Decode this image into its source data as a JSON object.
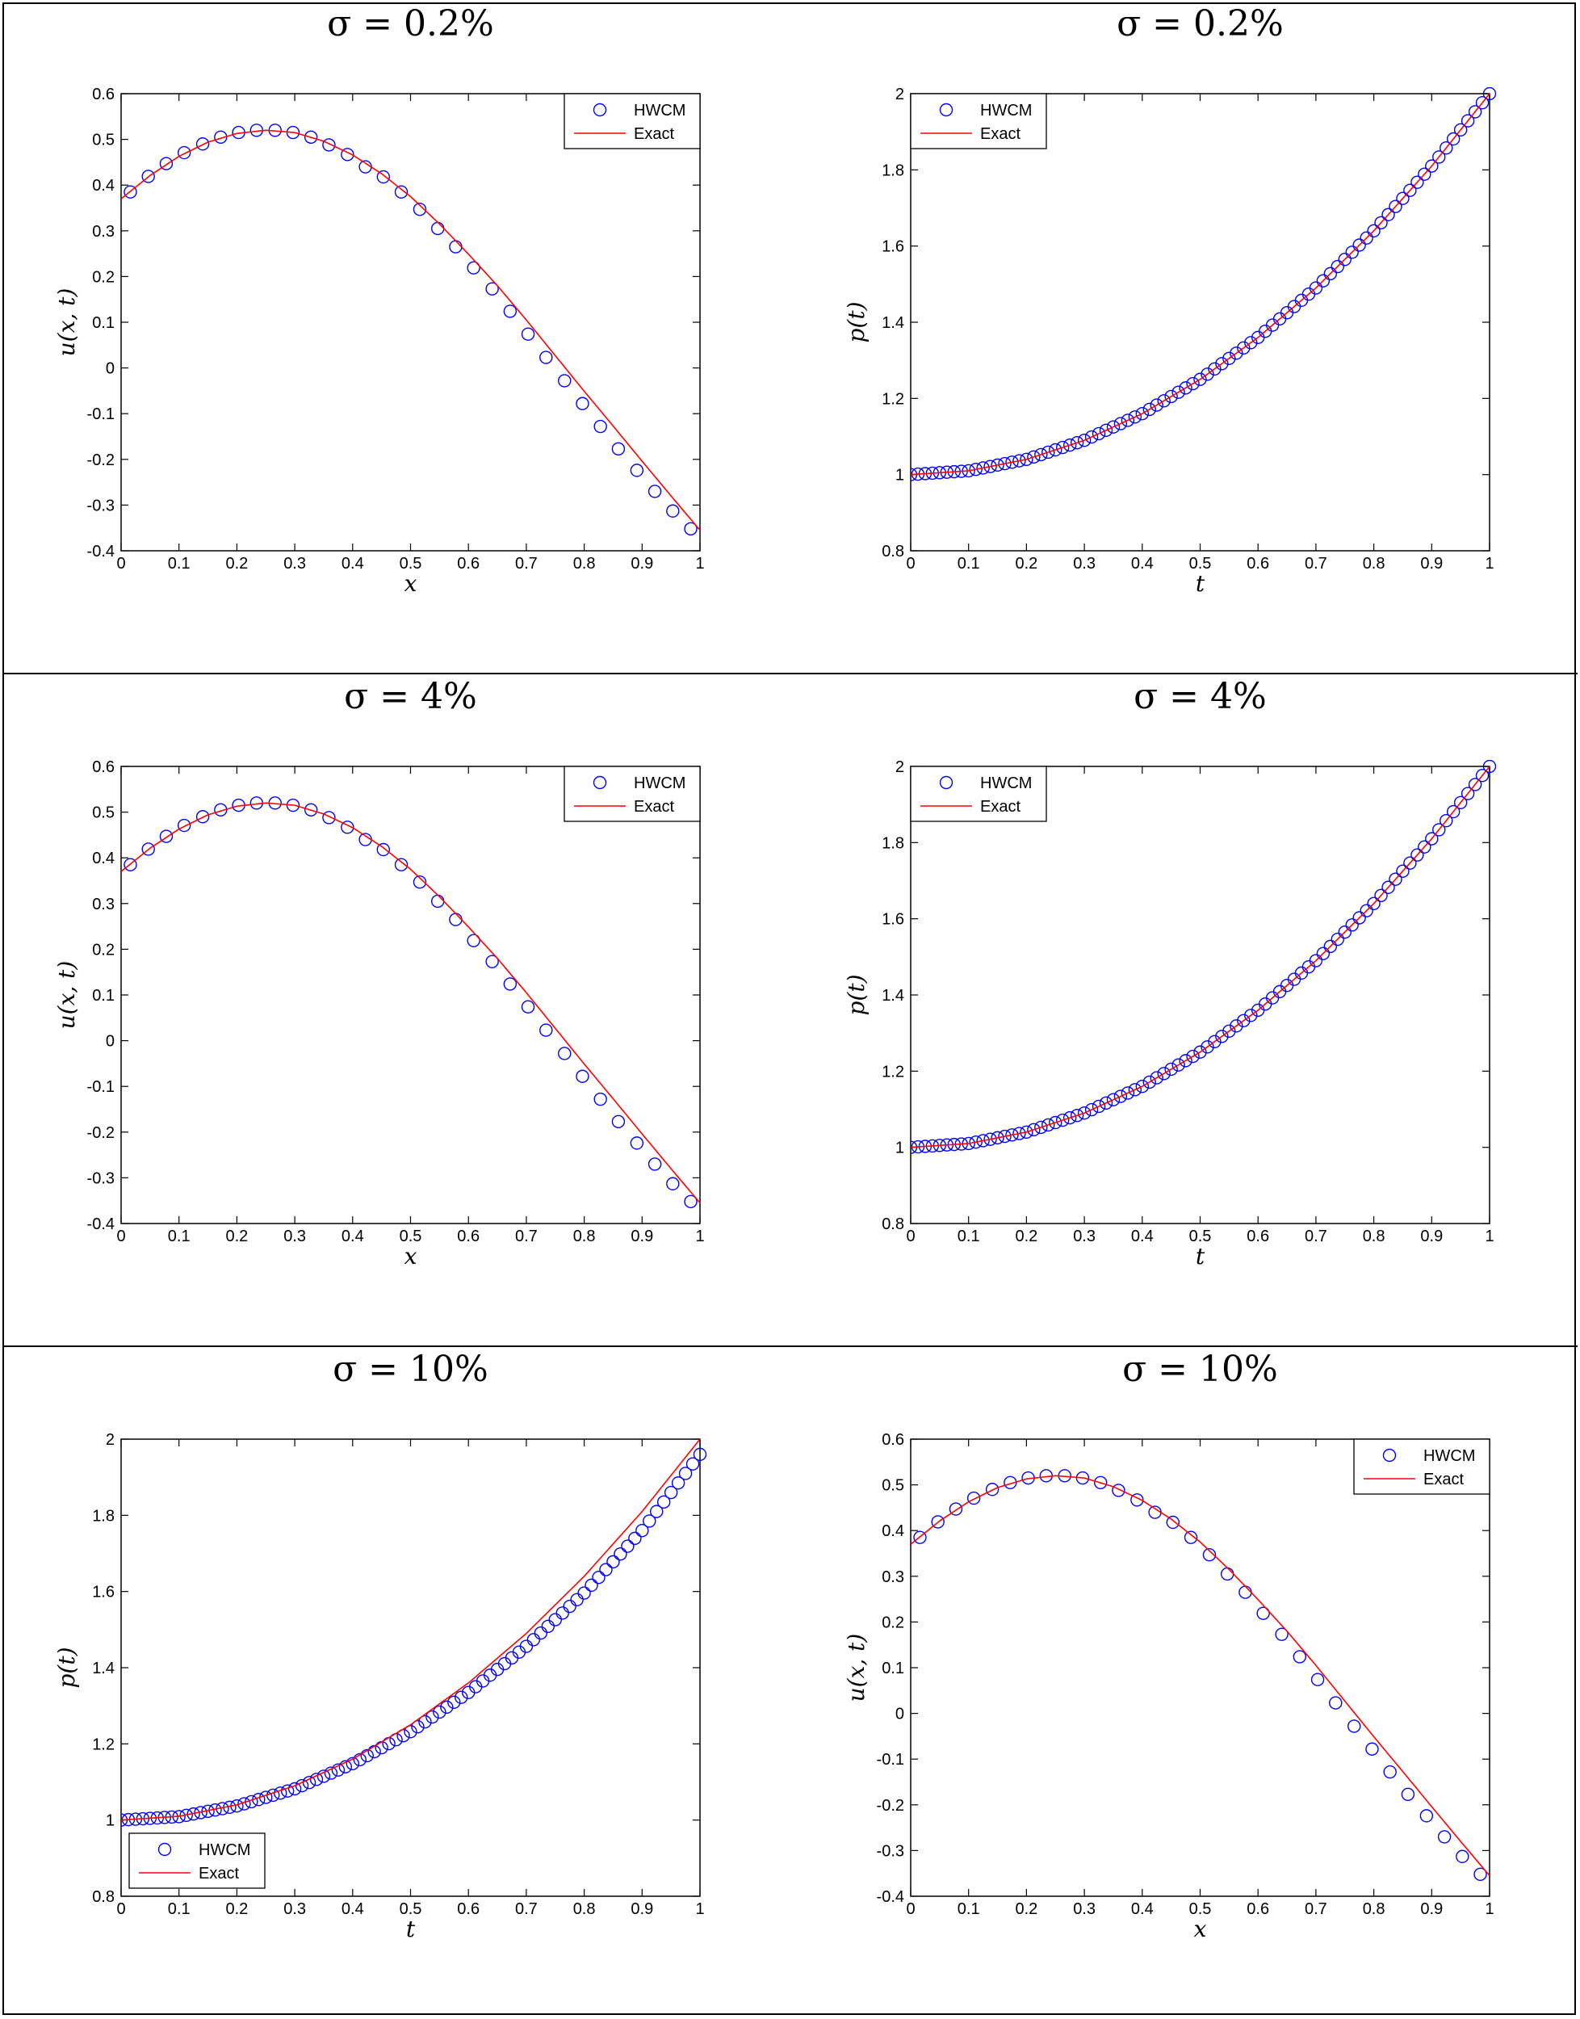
{
  "chart_data": [
    {
      "type": "line",
      "title": "σ = 0.2%",
      "xlabel": "x",
      "ylabel": "u(x, t)",
      "xlim": [
        0,
        1
      ],
      "ylim": [
        -0.4,
        0.6
      ],
      "xticks": [
        0,
        0.1,
        0.2,
        0.3,
        0.4,
        0.5,
        0.6,
        0.7,
        0.8,
        0.9,
        1
      ],
      "yticks": [
        -0.4,
        -0.3,
        -0.2,
        -0.1,
        0,
        0.1,
        0.2,
        0.3,
        0.4,
        0.5,
        0.6
      ],
      "legend_position": "top-right",
      "grid": false,
      "series": [
        {
          "name": "HWCM",
          "style": "markers",
          "color": "#0000ff",
          "x": [
            0.016,
            0.047,
            0.078,
            0.109,
            0.141,
            0.172,
            0.203,
            0.234,
            0.266,
            0.297,
            0.328,
            0.359,
            0.391,
            0.422,
            0.453,
            0.484,
            0.516,
            0.547,
            0.578,
            0.609,
            0.641,
            0.672,
            0.703,
            0.734,
            0.766,
            0.797,
            0.828,
            0.859,
            0.891,
            0.922,
            0.953,
            0.984
          ],
          "y": [
            0.385,
            0.419,
            0.447,
            0.471,
            0.49,
            0.505,
            0.515,
            0.52,
            0.52,
            0.515,
            0.505,
            0.488,
            0.467,
            0.44,
            0.418,
            0.385,
            0.347,
            0.305,
            0.265,
            0.219,
            0.173,
            0.124,
            0.074,
            0.023,
            -0.028,
            -0.078,
            -0.128,
            -0.177,
            -0.224,
            -0.27,
            -0.313,
            -0.352
          ]
        },
        {
          "name": "Exact",
          "style": "line",
          "color": "#ff0000",
          "x": [
            0,
            0.05,
            0.1,
            0.15,
            0.2,
            0.25,
            0.3,
            0.35,
            0.4,
            0.45,
            0.5,
            0.55,
            0.6,
            0.65,
            0.7,
            0.75,
            0.8,
            0.85,
            0.9,
            0.95,
            1
          ],
          "y": [
            0.37,
            0.421,
            0.463,
            0.494,
            0.513,
            0.52,
            0.515,
            0.496,
            0.466,
            0.425,
            0.375,
            0.315,
            0.249,
            0.18,
            0.105,
            0.027,
            -0.051,
            -0.127,
            -0.204,
            -0.28,
            -0.355
          ]
        }
      ]
    },
    {
      "type": "line",
      "title": "σ = 0.2%",
      "xlabel": "t",
      "ylabel": "p(t)",
      "xlim": [
        0,
        1
      ],
      "ylim": [
        0.8,
        2
      ],
      "xticks": [
        0,
        0.1,
        0.2,
        0.3,
        0.4,
        0.5,
        0.6,
        0.7,
        0.8,
        0.9,
        1
      ],
      "yticks": [
        0.8,
        1,
        1.2,
        1.4,
        1.6,
        1.8,
        2
      ],
      "legend_position": "top-left",
      "grid": false,
      "series": [
        {
          "name": "HWCM",
          "style": "markers",
          "color": "#0000ff",
          "note_points": 80,
          "x": [
            0,
            0.1,
            0.2,
            0.3,
            0.4,
            0.5,
            0.6,
            0.7,
            0.8,
            0.9,
            1
          ],
          "y": [
            1,
            1.01,
            1.04,
            1.09,
            1.16,
            1.25,
            1.36,
            1.49,
            1.64,
            1.81,
            2
          ]
        },
        {
          "name": "Exact",
          "style": "line",
          "color": "#ff0000",
          "x": [
            0,
            0.1,
            0.2,
            0.3,
            0.4,
            0.5,
            0.6,
            0.7,
            0.8,
            0.9,
            1
          ],
          "y": [
            1,
            1.01,
            1.04,
            1.09,
            1.16,
            1.25,
            1.36,
            1.49,
            1.64,
            1.81,
            2
          ]
        }
      ]
    },
    {
      "type": "line",
      "title": "σ = 4%",
      "xlabel": "x",
      "ylabel": "u(x, t)",
      "xlim": [
        0,
        1
      ],
      "ylim": [
        -0.4,
        0.6
      ],
      "xticks": [
        0,
        0.1,
        0.2,
        0.3,
        0.4,
        0.5,
        0.6,
        0.7,
        0.8,
        0.9,
        1
      ],
      "yticks": [
        -0.4,
        -0.3,
        -0.2,
        -0.1,
        0,
        0.1,
        0.2,
        0.3,
        0.4,
        0.5,
        0.6
      ],
      "legend_position": "top-right",
      "grid": false,
      "series": [
        {
          "name": "HWCM",
          "style": "markers",
          "color": "#0000ff",
          "x": [
            0.016,
            0.047,
            0.078,
            0.109,
            0.141,
            0.172,
            0.203,
            0.234,
            0.266,
            0.297,
            0.328,
            0.359,
            0.391,
            0.422,
            0.453,
            0.484,
            0.516,
            0.547,
            0.578,
            0.609,
            0.641,
            0.672,
            0.703,
            0.734,
            0.766,
            0.797,
            0.828,
            0.859,
            0.891,
            0.922,
            0.953,
            0.984
          ],
          "y": [
            0.385,
            0.419,
            0.447,
            0.471,
            0.49,
            0.505,
            0.515,
            0.52,
            0.52,
            0.515,
            0.505,
            0.488,
            0.467,
            0.44,
            0.418,
            0.385,
            0.347,
            0.305,
            0.265,
            0.219,
            0.173,
            0.124,
            0.074,
            0.023,
            -0.028,
            -0.078,
            -0.128,
            -0.177,
            -0.224,
            -0.27,
            -0.313,
            -0.352
          ]
        },
        {
          "name": "Exact",
          "style": "line",
          "color": "#ff0000",
          "x": [
            0,
            0.05,
            0.1,
            0.15,
            0.2,
            0.25,
            0.3,
            0.35,
            0.4,
            0.45,
            0.5,
            0.55,
            0.6,
            0.65,
            0.7,
            0.75,
            0.8,
            0.85,
            0.9,
            0.95,
            1
          ],
          "y": [
            0.37,
            0.421,
            0.463,
            0.494,
            0.513,
            0.52,
            0.515,
            0.496,
            0.466,
            0.425,
            0.375,
            0.315,
            0.249,
            0.18,
            0.105,
            0.027,
            -0.051,
            -0.127,
            -0.204,
            -0.28,
            -0.355
          ]
        }
      ]
    },
    {
      "type": "line",
      "title": "σ = 4%",
      "xlabel": "t",
      "ylabel": "p(t)",
      "xlim": [
        0,
        1
      ],
      "ylim": [
        0.8,
        2
      ],
      "xticks": [
        0,
        0.1,
        0.2,
        0.3,
        0.4,
        0.5,
        0.6,
        0.7,
        0.8,
        0.9,
        1
      ],
      "yticks": [
        0.8,
        1,
        1.2,
        1.4,
        1.6,
        1.8,
        2
      ],
      "legend_position": "top-left",
      "grid": false,
      "series": [
        {
          "name": "HWCM",
          "style": "markers",
          "color": "#0000ff",
          "x": [
            0,
            0.1,
            0.2,
            0.3,
            0.4,
            0.5,
            0.6,
            0.7,
            0.8,
            0.9,
            1
          ],
          "y": [
            1,
            1.01,
            1.04,
            1.09,
            1.16,
            1.25,
            1.36,
            1.49,
            1.64,
            1.81,
            2
          ]
        },
        {
          "name": "Exact",
          "style": "line",
          "color": "#ff0000",
          "x": [
            0,
            0.1,
            0.2,
            0.3,
            0.4,
            0.5,
            0.6,
            0.7,
            0.8,
            0.9,
            1
          ],
          "y": [
            1,
            1.01,
            1.04,
            1.09,
            1.16,
            1.25,
            1.36,
            1.49,
            1.64,
            1.81,
            2
          ]
        }
      ]
    },
    {
      "type": "line",
      "title": "σ = 10%",
      "xlabel": "t",
      "ylabel": "p(t)",
      "xlim": [
        0,
        1
      ],
      "ylim": [
        0.8,
        2
      ],
      "xticks": [
        0,
        0.1,
        0.2,
        0.3,
        0.4,
        0.5,
        0.6,
        0.7,
        0.8,
        0.9,
        1
      ],
      "yticks": [
        0.8,
        1,
        1.2,
        1.4,
        1.6,
        1.8,
        2
      ],
      "legend_position": "bottom-left",
      "grid": false,
      "series": [
        {
          "name": "HWCM",
          "style": "markers",
          "color": "#0000ff",
          "x": [
            0,
            0.1,
            0.2,
            0.3,
            0.4,
            0.5,
            0.6,
            0.7,
            0.8,
            0.9,
            1
          ],
          "y": [
            1,
            1.009,
            1.037,
            1.082,
            1.148,
            1.232,
            1.335,
            1.456,
            1.596,
            1.76,
            1.96
          ]
        },
        {
          "name": "Exact",
          "style": "line",
          "color": "#ff0000",
          "x": [
            0,
            0.1,
            0.2,
            0.3,
            0.4,
            0.5,
            0.6,
            0.7,
            0.8,
            0.9,
            1
          ],
          "y": [
            1,
            1.01,
            1.04,
            1.09,
            1.16,
            1.25,
            1.36,
            1.49,
            1.64,
            1.81,
            2
          ]
        }
      ]
    },
    {
      "type": "line",
      "title": "σ = 10%",
      "xlabel": "x",
      "ylabel": "u(x, t)",
      "xlim": [
        0,
        1
      ],
      "ylim": [
        -0.4,
        0.6
      ],
      "xticks": [
        0,
        0.1,
        0.2,
        0.3,
        0.4,
        0.5,
        0.6,
        0.7,
        0.8,
        0.9,
        1
      ],
      "yticks": [
        -0.4,
        -0.3,
        -0.2,
        -0.1,
        0,
        0.1,
        0.2,
        0.3,
        0.4,
        0.5,
        0.6
      ],
      "legend_position": "top-right",
      "grid": false,
      "series": [
        {
          "name": "HWCM",
          "style": "markers",
          "color": "#0000ff",
          "x": [
            0.016,
            0.047,
            0.078,
            0.109,
            0.141,
            0.172,
            0.203,
            0.234,
            0.266,
            0.297,
            0.328,
            0.359,
            0.391,
            0.422,
            0.453,
            0.484,
            0.516,
            0.547,
            0.578,
            0.609,
            0.641,
            0.672,
            0.703,
            0.734,
            0.766,
            0.797,
            0.828,
            0.859,
            0.891,
            0.922,
            0.953,
            0.984
          ],
          "y": [
            0.385,
            0.419,
            0.447,
            0.471,
            0.49,
            0.505,
            0.515,
            0.52,
            0.52,
            0.515,
            0.505,
            0.488,
            0.467,
            0.44,
            0.418,
            0.385,
            0.347,
            0.305,
            0.265,
            0.219,
            0.173,
            0.124,
            0.074,
            0.023,
            -0.028,
            -0.078,
            -0.128,
            -0.177,
            -0.224,
            -0.27,
            -0.313,
            -0.352
          ]
        },
        {
          "name": "Exact",
          "style": "line",
          "color": "#ff0000",
          "x": [
            0,
            0.05,
            0.1,
            0.15,
            0.2,
            0.25,
            0.3,
            0.35,
            0.4,
            0.45,
            0.5,
            0.55,
            0.6,
            0.65,
            0.7,
            0.75,
            0.8,
            0.85,
            0.9,
            0.95,
            1
          ],
          "y": [
            0.37,
            0.421,
            0.463,
            0.494,
            0.513,
            0.52,
            0.515,
            0.496,
            0.466,
            0.425,
            0.375,
            0.315,
            0.249,
            0.18,
            0.105,
            0.027,
            -0.051,
            -0.127,
            -0.204,
            -0.28,
            -0.355
          ]
        }
      ]
    }
  ]
}
